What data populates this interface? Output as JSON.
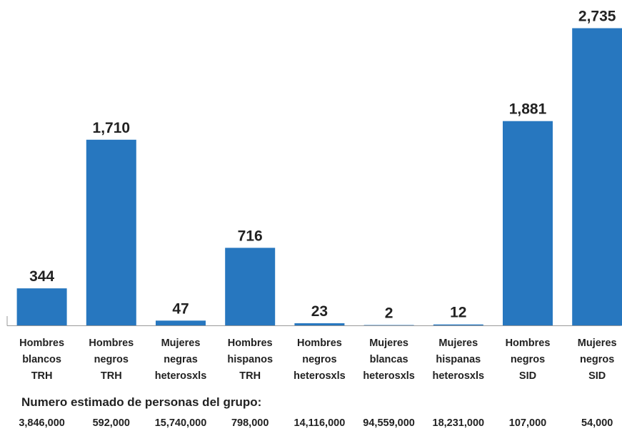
{
  "chart_data": {
    "type": "bar",
    "title": "",
    "xlabel": "",
    "ylabel": "",
    "ylim": [
      0,
      2850
    ],
    "grid": false,
    "legend": "none",
    "bar_color": "#2777bf",
    "categories": [
      [
        "Hombres",
        "blancos",
        "TRH"
      ],
      [
        "Hombres",
        "negros",
        "TRH"
      ],
      [
        "Mujeres",
        "negras",
        "heterosxls"
      ],
      [
        "Hombres",
        "hispanos",
        "TRH"
      ],
      [
        "Hombres",
        "negros",
        "heterosxls"
      ],
      [
        "Mujeres",
        "blancas",
        "heterosxls"
      ],
      [
        "Mujeres",
        "hispanas",
        "heterosxls"
      ],
      [
        "Hombres",
        "negros",
        "SID"
      ],
      [
        "Mujeres",
        "negros",
        "SID"
      ]
    ],
    "values": [
      344,
      1710,
      47,
      716,
      23,
      2,
      12,
      1881,
      2735
    ],
    "value_labels": [
      "344",
      "1,710",
      "47",
      "716",
      "23",
      "2",
      "12",
      "1,881",
      "2,735"
    ],
    "population_heading": "Numero estimado de personas del grupo:",
    "population": [
      "3,846,000",
      "592,000",
      "15,740,000",
      "798,000",
      "14,116,000",
      "94,559,000",
      "18,231,000",
      "107,000",
      "54,000"
    ]
  }
}
